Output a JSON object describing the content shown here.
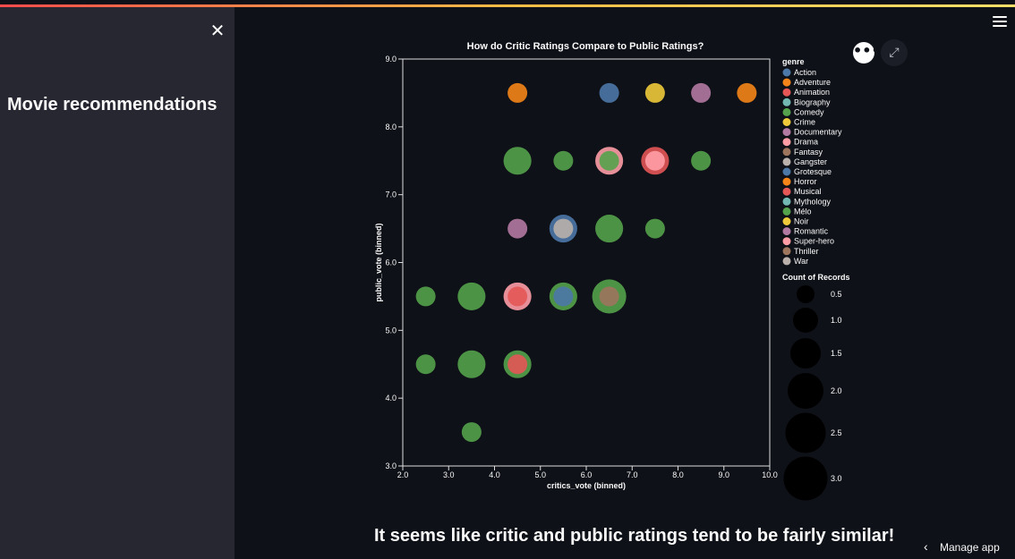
{
  "sidebar": {
    "close_icon": "close-icon",
    "title": "Movie recommendations"
  },
  "header": {
    "menu_icon": "hamburger-icon"
  },
  "chart_toolbar": {
    "more_icon": "more-icon",
    "expand_icon": "expand-icon"
  },
  "chart_data": {
    "type": "scatter",
    "title": "How do Critic Ratings Compare to Public Ratings?",
    "xlabel": "critics_vote (binned)",
    "ylabel": "public_vote (binned)",
    "xlim": [
      2.0,
      10.0
    ],
    "ylim": [
      3.0,
      9.0
    ],
    "x_ticks": [
      "2.0",
      "3.0",
      "4.0",
      "5.0",
      "6.0",
      "7.0",
      "8.0",
      "9.0",
      "10.0"
    ],
    "y_ticks": [
      "3.0",
      "4.0",
      "5.0",
      "6.0",
      "7.0",
      "8.0",
      "9.0"
    ],
    "grid": false,
    "legend_title": "genre",
    "size_legend_title": "Count of Records",
    "size_legend": [
      "0.5",
      "1.0",
      "1.5",
      "2.0",
      "2.5",
      "3.0"
    ],
    "genres": [
      {
        "name": "Action",
        "color": "#4c78a8"
      },
      {
        "name": "Adventure",
        "color": "#f58518"
      },
      {
        "name": "Animation",
        "color": "#e45756"
      },
      {
        "name": "Biography",
        "color": "#72b7b2"
      },
      {
        "name": "Comedy",
        "color": "#54a24b"
      },
      {
        "name": "Crime",
        "color": "#eeca3b"
      },
      {
        "name": "Documentary",
        "color": "#b279a2"
      },
      {
        "name": "Drama",
        "color": "#ff9da6"
      },
      {
        "name": "Fantasy",
        "color": "#9d755d"
      },
      {
        "name": "Gangster",
        "color": "#bab0ac"
      },
      {
        "name": "Grotesque",
        "color": "#4c78a8"
      },
      {
        "name": "Horror",
        "color": "#f58518"
      },
      {
        "name": "Musical",
        "color": "#e45756"
      },
      {
        "name": "Mythology",
        "color": "#72b7b2"
      },
      {
        "name": "Mélo",
        "color": "#54a24b"
      },
      {
        "name": "Noir",
        "color": "#eeca3b"
      },
      {
        "name": "Romantic",
        "color": "#b279a2"
      },
      {
        "name": "Super-hero",
        "color": "#ff9da6"
      },
      {
        "name": "Thriller",
        "color": "#9d755d"
      },
      {
        "name": "War",
        "color": "#bab0ac"
      }
    ],
    "points": [
      {
        "x": 4.5,
        "y": 8.5,
        "genre": "Adventure",
        "count": 1
      },
      {
        "x": 6.5,
        "y": 8.5,
        "genre": "Action",
        "count": 1
      },
      {
        "x": 7.5,
        "y": 8.5,
        "genre": "Crime",
        "count": 1
      },
      {
        "x": 8.5,
        "y": 8.5,
        "genre": "Documentary",
        "count": 1
      },
      {
        "x": 9.5,
        "y": 8.5,
        "genre": "Adventure",
        "count": 1
      },
      {
        "x": 4.5,
        "y": 7.5,
        "genre": "Comedy",
        "count": 2
      },
      {
        "x": 5.5,
        "y": 7.5,
        "genre": "Comedy",
        "count": 1
      },
      {
        "x": 6.5,
        "y": 7.5,
        "genre": "Drama",
        "count": 2
      },
      {
        "x": 6.5,
        "y": 7.5,
        "genre": "Comedy",
        "count": 1
      },
      {
        "x": 7.5,
        "y": 7.5,
        "genre": "Animation",
        "count": 2
      },
      {
        "x": 7.5,
        "y": 7.5,
        "genre": "Drama",
        "count": 1
      },
      {
        "x": 8.5,
        "y": 7.5,
        "genre": "Comedy",
        "count": 1
      },
      {
        "x": 4.5,
        "y": 6.5,
        "genre": "Documentary",
        "count": 1
      },
      {
        "x": 5.5,
        "y": 6.5,
        "genre": "Action",
        "count": 2
      },
      {
        "x": 5.5,
        "y": 6.5,
        "genre": "Gangster",
        "count": 1
      },
      {
        "x": 6.5,
        "y": 6.5,
        "genre": "Comedy",
        "count": 2
      },
      {
        "x": 7.5,
        "y": 6.5,
        "genre": "Comedy",
        "count": 1
      },
      {
        "x": 2.5,
        "y": 5.5,
        "genre": "Comedy",
        "count": 1
      },
      {
        "x": 3.5,
        "y": 5.5,
        "genre": "Comedy",
        "count": 2
      },
      {
        "x": 4.5,
        "y": 5.5,
        "genre": "Drama",
        "count": 2
      },
      {
        "x": 4.5,
        "y": 5.5,
        "genre": "Animation",
        "count": 1
      },
      {
        "x": 5.5,
        "y": 5.5,
        "genre": "Comedy",
        "count": 2
      },
      {
        "x": 5.5,
        "y": 5.5,
        "genre": "Action",
        "count": 1
      },
      {
        "x": 6.5,
        "y": 5.5,
        "genre": "Comedy",
        "count": 3
      },
      {
        "x": 6.5,
        "y": 5.5,
        "genre": "Fantasy",
        "count": 1
      },
      {
        "x": 2.5,
        "y": 4.5,
        "genre": "Comedy",
        "count": 1
      },
      {
        "x": 3.5,
        "y": 4.5,
        "genre": "Comedy",
        "count": 2
      },
      {
        "x": 4.5,
        "y": 4.5,
        "genre": "Comedy",
        "count": 2
      },
      {
        "x": 4.5,
        "y": 4.5,
        "genre": "Animation",
        "count": 1
      },
      {
        "x": 3.5,
        "y": 3.5,
        "genre": "Comedy",
        "count": 1
      }
    ]
  },
  "main": {
    "conclusion": "It seems like critic and public ratings tend to be fairly similar!"
  },
  "footer": {
    "manage_label": "Manage app"
  }
}
